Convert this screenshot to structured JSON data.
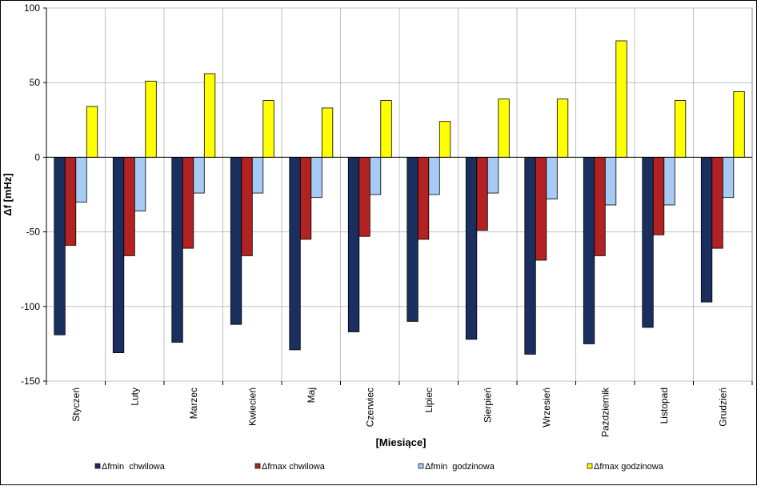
{
  "chart_data": {
    "type": "bar",
    "title": "",
    "xlabel": "[Miesiące]",
    "ylabel": "Δf [mHz]",
    "ylim": [
      -150,
      100
    ],
    "yticks": [
      100,
      50,
      0,
      -50,
      -100,
      -150
    ],
    "grid": true,
    "legend_position": "bottom",
    "categories": [
      "Styczeń",
      "Luty",
      "Marzec",
      "Kwiecień",
      "Maj",
      "Czerwiec",
      "Lipiec",
      "Sierpień",
      "Wrzesień",
      "Październik",
      "Listopad",
      "Grudzień"
    ],
    "series": [
      {
        "name": "Δfmin  chwilowa",
        "color": "#1b2f5e",
        "values": [
          -119,
          -131,
          -124,
          -112,
          -129,
          -117,
          -110,
          -122,
          -132,
          -125,
          -114,
          -97
        ]
      },
      {
        "name": "Δfmax chwilowa",
        "color": "#b22222",
        "values": [
          -59,
          -66,
          -61,
          -66,
          -55,
          -53,
          -55,
          -49,
          -69,
          -66,
          -52,
          -61
        ]
      },
      {
        "name": "Δfmin  godzinowa",
        "color": "#a6cbf5",
        "values": [
          -30,
          -36,
          -24,
          -24,
          -27,
          -25,
          -25,
          -24,
          -28,
          -32,
          -32,
          -27
        ]
      },
      {
        "name": "Δfmax godzinowa",
        "color": "#ffff00",
        "values": [
          34,
          51,
          56,
          38,
          33,
          38,
          24,
          39,
          39,
          78,
          38,
          44
        ]
      }
    ]
  }
}
